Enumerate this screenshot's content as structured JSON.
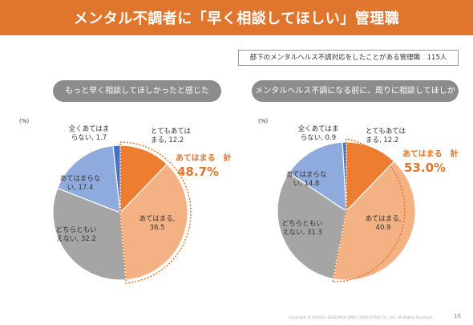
{
  "header": {
    "title": "メンタル不調者に「早く相談してほしい」管理職"
  },
  "subject_box": {
    "text": "部下のメンタルヘルス不調対応をしたことがある管理職　115人"
  },
  "footer": {
    "copyright": "Copyright © PERSOL RESEARCH AND CONSULTING Co., Ltd. All Rights Reserved.",
    "page": "16"
  },
  "colors": {
    "header": "#e0762d",
    "accent": "#e0762d",
    "slices": [
      "#ed7d31",
      "#f4b183",
      "#a5a5a5",
      "#8faadc",
      "#4472c4"
    ]
  },
  "chart_data": [
    {
      "type": "pie",
      "title": "もっと早く相談してほしかったと感じた",
      "unit": "(%)",
      "categories": [
        "とてもあてはまる",
        "あてはまる",
        "どちらともいえない",
        "あてはまらない",
        "全くあてはまらない"
      ],
      "values": [
        12.2,
        36.5,
        32.2,
        17.4,
        1.7
      ],
      "labels": [
        [
          "とてもあては",
          "まる, 12.2"
        ],
        [
          "あてはまる,",
          "36.5"
        ],
        [
          "どちらともい",
          "えない, 32.2"
        ],
        [
          "あてはまらな",
          "い, 17.4"
        ],
        [
          "全くあてはま",
          "らない, 1.7"
        ]
      ],
      "total_label": "あてはまる　計",
      "total_value": "48.7%"
    },
    {
      "type": "pie",
      "title": "メンタルヘルス不調になる前に、周りに相談してほしかった",
      "unit": "(%)",
      "categories": [
        "とてもあてはまる",
        "あてはまる",
        "どちらともいえない",
        "あてはまらない",
        "全くあてはまらない"
      ],
      "values": [
        12.2,
        40.9,
        31.3,
        14.8,
        0.9
      ],
      "labels": [
        [
          "とてもあては",
          "まる, 12.2"
        ],
        [
          "あてはまる,",
          "40.9"
        ],
        [
          "どちらともい",
          "えない, 31.3"
        ],
        [
          "あてはまらな",
          "い, 14.8"
        ],
        [
          "全くあてはま",
          "らない, 0.9"
        ]
      ],
      "total_label": "あてはまる　計",
      "total_value": "53.0%"
    }
  ]
}
